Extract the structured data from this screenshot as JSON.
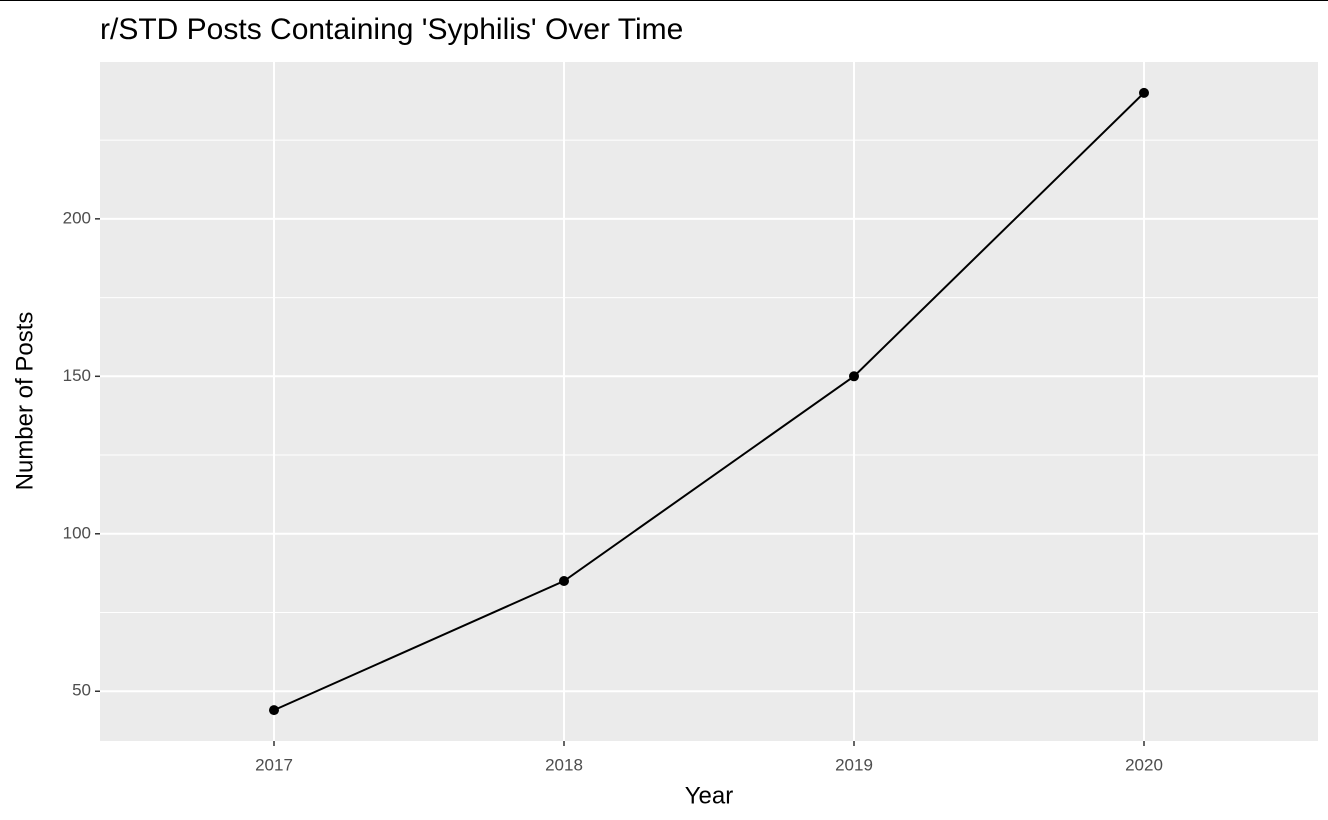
{
  "chart_data": {
    "type": "line",
    "title": "r/STD Posts Containing 'Syphilis' Over Time",
    "x_label": "Year",
    "y_label": "Number of Posts",
    "x": [
      2017,
      2018,
      2019,
      2020
    ],
    "series": [
      {
        "name": "Posts",
        "color": "#000000",
        "values": [
          44,
          85,
          150,
          240
        ]
      }
    ],
    "xlim": [
      2016.4,
      2020.6
    ],
    "xticks": [
      2017,
      2018,
      2019,
      2020
    ],
    "ylim": [
      34.2,
      249.8
    ],
    "yticks": [
      50,
      100,
      150,
      200
    ],
    "grid": true
  }
}
